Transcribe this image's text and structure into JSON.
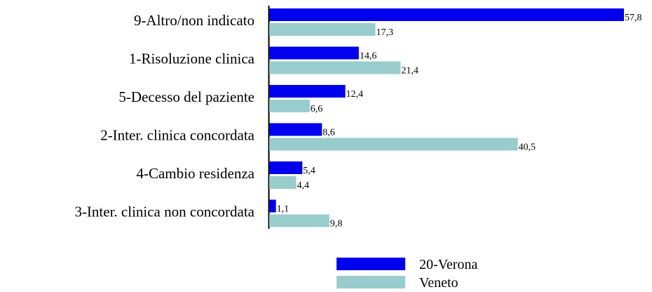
{
  "chart_data": {
    "type": "bar",
    "orientation": "horizontal",
    "categories": [
      "9-Altro/non indicato",
      "1-Risoluzione clinica",
      "5-Decesso del paziente",
      "2-Inter. clinica concordata",
      "4-Cambio residenza",
      "3-Inter. clinica non concordata"
    ],
    "series": [
      {
        "name": "20-Verona",
        "color": "#0000ee",
        "values": [
          57.8,
          14.6,
          12.4,
          8.6,
          5.4,
          1.1
        ],
        "value_labels": [
          "57,8",
          "14,6",
          "12,4",
          "8,6",
          "5,4",
          "1,1"
        ]
      },
      {
        "name": "Veneto",
        "color": "#99cccc",
        "values": [
          17.3,
          21.4,
          6.6,
          40.5,
          4.4,
          9.8
        ],
        "value_labels": [
          "17,3",
          "21,4",
          "6,6",
          "40,5",
          "4,4",
          "9,8"
        ]
      }
    ],
    "legend": "bottom"
  }
}
